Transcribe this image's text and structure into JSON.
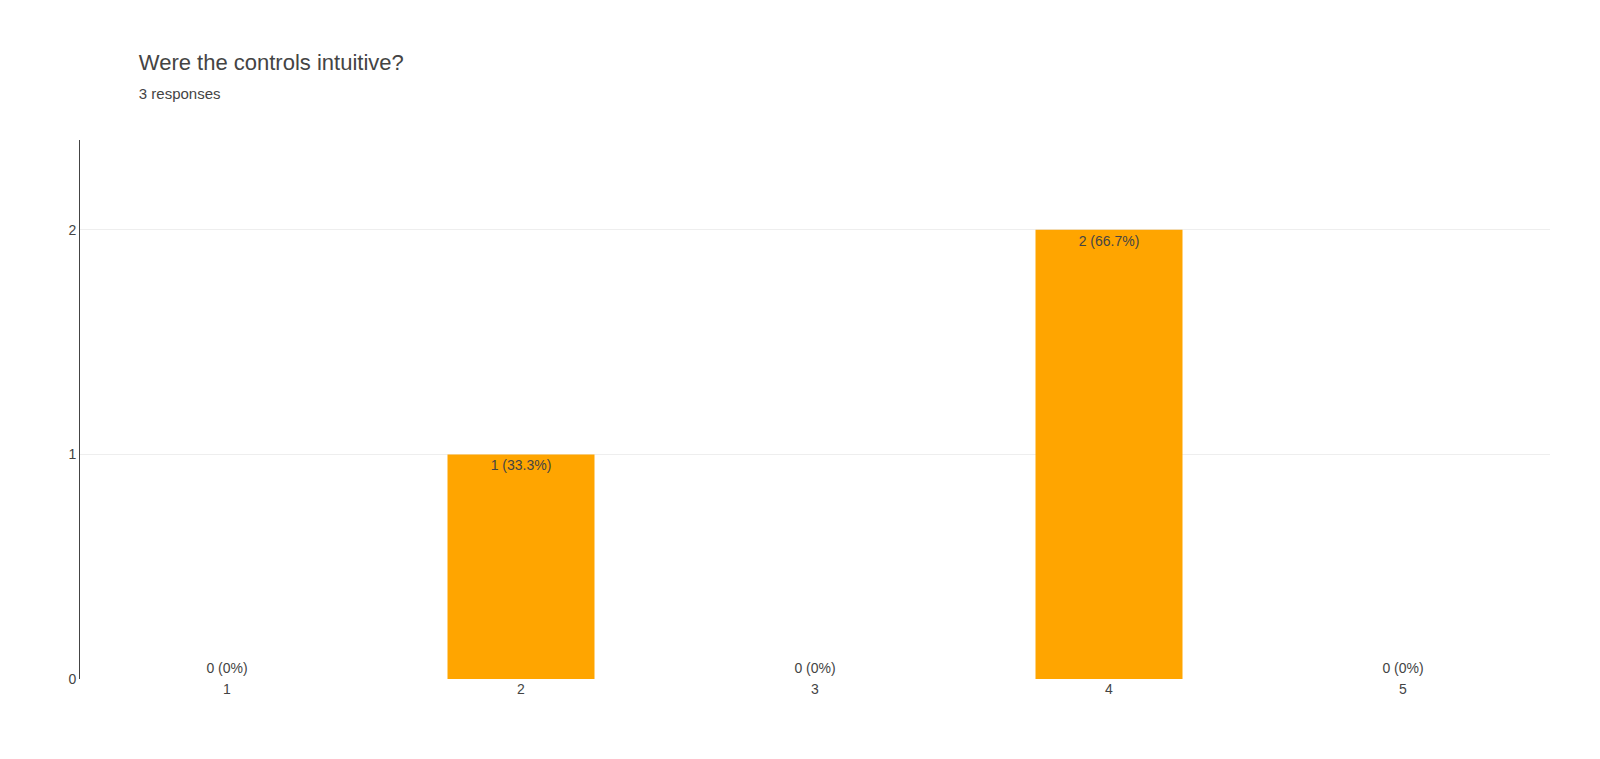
{
  "chart_data": {
    "type": "bar",
    "title": "Were the controls intuitive?",
    "subtitle": "3 responses",
    "categories": [
      1,
      2,
      3,
      4,
      5
    ],
    "values": [
      0,
      1,
      0,
      2,
      0
    ],
    "value_labels": [
      "0 (0%)",
      "1 (33.3%)",
      "0 (0%)",
      "2 (66.7%)",
      "0 (0%)"
    ],
    "data_labels": true,
    "color": "#FFA500",
    "ylim": [
      0,
      2.4
    ],
    "yticks": [
      0,
      1,
      2
    ],
    "grid": true
  }
}
